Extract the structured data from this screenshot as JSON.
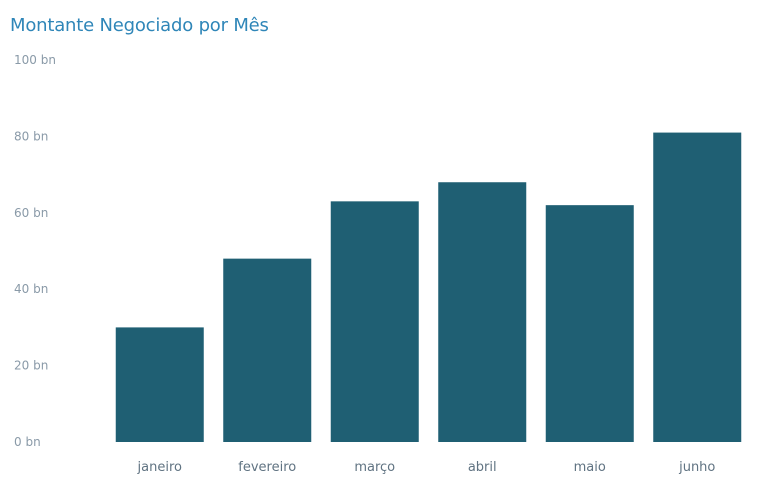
{
  "chart_data": {
    "type": "bar",
    "title": "Montante Negociado por Mês",
    "categories": [
      "janeiro",
      "fevereiro",
      "março",
      "abril",
      "maio",
      "junho"
    ],
    "values": [
      30,
      48,
      63,
      68,
      62,
      81
    ],
    "y_ticks": [
      "0 bn",
      "20 bn",
      "40 bn",
      "60 bn",
      "80 bn",
      "100 bn"
    ],
    "y_tick_values": [
      0,
      20,
      40,
      60,
      80,
      100
    ],
    "ylim": [
      0,
      100
    ],
    "xlabel": "",
    "ylabel": "",
    "grid": false,
    "legend": "none",
    "colors": {
      "bar": "#1f5f73",
      "title": "#2f86b8",
      "tick": "#8a9aa8",
      "category": "#607382"
    }
  }
}
